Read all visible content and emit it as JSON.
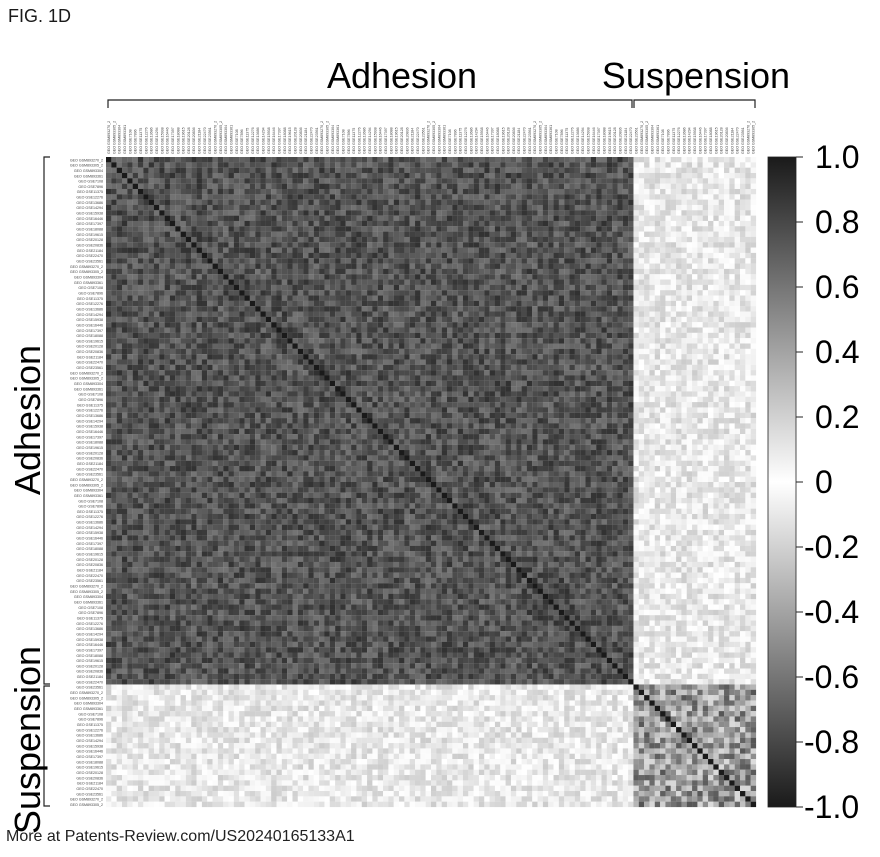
{
  "figure_label": "FIG. 1D",
  "footer": "More at Patents-Review.com/US20240165133A1",
  "chart_data": {
    "type": "heatmap",
    "title": "",
    "groups": [
      {
        "name": "Adhesion",
        "count": 99
      },
      {
        "name": "Suspension",
        "count": 23
      }
    ],
    "colorbar": {
      "min": -1.0,
      "max": 1.0,
      "ticks": [
        "1.0",
        "0.8",
        "0.6",
        "0.4",
        "0.2",
        "0",
        "-0.2",
        "-0.4",
        "-0.6",
        "-0.8",
        "-1.0"
      ],
      "low_color": "#1a1a1a",
      "mid_color": "#ffffff",
      "high_color": "#1a1a1a"
    },
    "approx_values": {
      "diagonal": 1.0,
      "adhesion_vs_adhesion": 0.75,
      "suspension_vs_suspension": 0.45,
      "adhesion_vs_suspension": 0.1
    },
    "row_labels_sample": [
      "GEO GSM893270_2",
      "GEO GSM893305_2",
      "GEO GSM893304",
      "GEO GSM893361",
      "GEO GSE7108",
      "GEO GSE7896",
      "GEO GSE11375",
      "GEO GSE12276",
      "GEO GSE13686",
      "GEO GSE14294",
      "GEO GSE15938",
      "GEO GSE16446",
      "GEO GSE17397",
      "GEO GSE18088",
      "GEO GSE19615",
      "GEO GSE20128",
      "GEO GSE20836",
      "GEO GSE21184",
      "GEO GSE22470",
      "GEO GSE23561"
    ]
  }
}
